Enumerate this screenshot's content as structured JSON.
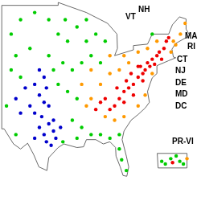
{
  "chart_data": [
    {
      "type": "scatter",
      "marker": "circle",
      "tick_labels": false,
      "grid": false,
      "xlim": [
        -107,
        -65
      ],
      "ylim": [
        22,
        49.5
      ],
      "annotations": [
        "NH",
        "VT",
        "MA",
        "RI",
        "CT",
        "NJ",
        "DE",
        "MD",
        "DC",
        "PR-VI"
      ],
      "series": [
        {
          "color": "#00cc00",
          "x": [
            -105,
            -103,
            -100,
            -97,
            -95,
            -93,
            -91,
            -89,
            -87,
            -85,
            -105,
            -104,
            -101,
            -97,
            -94,
            -92,
            -90,
            -88,
            -86,
            -95,
            -93,
            -91,
            -92,
            -90,
            -88,
            -86,
            -84,
            -82,
            -81.5,
            -80.5,
            -94,
            -91,
            -104,
            -106,
            -103,
            -82,
            -89,
            -75,
            -93.5,
            -96
          ],
          "values": [
            45,
            47,
            48,
            47,
            45,
            44,
            46,
            44,
            45,
            44,
            40,
            42,
            43,
            42,
            41,
            40,
            41,
            42,
            41,
            38,
            37,
            36,
            33,
            32,
            31,
            31,
            30.5,
            29,
            27.5,
            26,
            30,
            30.5,
            31,
            35,
            39,
            31,
            47,
            45,
            47,
            40
          ]
        },
        {
          "color": "#0000cc",
          "x": [
            -99,
            -98,
            -100,
            -97.5,
            -99,
            -98,
            -97,
            -100,
            -98.5,
            -97,
            -99,
            -96,
            -98,
            -100,
            -97.5,
            -96.5,
            -95.5,
            -101,
            -103,
            -104,
            -102,
            -96,
            -94.5
          ],
          "values": [
            40,
            39,
            38,
            37.5,
            36.5,
            35.5,
            35,
            34,
            33.5,
            32.5,
            32,
            31.5,
            31,
            30.5,
            30,
            29.5,
            30.5,
            35,
            34,
            36,
            37.5,
            33,
            32
          ]
        },
        {
          "color": "#ff9900",
          "x": [
            -88,
            -86,
            -84,
            -82,
            -80,
            -81,
            -78,
            -76,
            -74,
            -70.5,
            -69,
            -68,
            -71,
            -70,
            -85,
            -83,
            -81,
            -78,
            -76.5,
            -88,
            -84,
            -89,
            -90,
            -75
          ],
          "values": [
            36,
            38,
            39.5,
            40,
            41,
            42,
            42.5,
            43,
            44,
            44,
            45,
            46.5,
            42.5,
            43.5,
            33.5,
            33,
            33.5,
            35,
            36.5,
            40,
            42,
            35,
            38,
            39.5
          ]
        },
        {
          "color": "#ee0000",
          "x": [
            -84,
            -83,
            -82,
            -81,
            -80,
            -79,
            -78,
            -77,
            -76.5,
            -77.5,
            -76,
            -75,
            -74,
            -73.5,
            -72.5,
            -72,
            -71.5,
            -80.5,
            -79.5,
            -78,
            -75.5,
            -74.5,
            -73,
            -82.5,
            -85,
            -86,
            -87,
            -81,
            -79,
            -77
          ],
          "values": [
            34.5,
            35,
            36,
            37,
            37.5,
            38,
            39,
            39.5,
            40,
            40.5,
            41,
            41.5,
            42,
            42.5,
            43,
            44,
            44.5,
            38.5,
            39.5,
            40.5,
            40.5,
            40.8,
            41.5,
            37.5,
            36,
            35.5,
            34.5,
            35.5,
            36.5,
            38.5
          ]
        }
      ]
    },
    {
      "type": "scatter",
      "marker": "circle",
      "tick_labels": false,
      "grid": false,
      "xlim": [
        -67.4,
        -65.1
      ],
      "ylim": [
        17.8,
        18.7
      ],
      "series": [
        {
          "color": "#00cc00",
          "x": [
            -67,
            -66.5,
            -66,
            -65.8,
            -66.8,
            -66.2
          ],
          "values": [
            18.2,
            18.3,
            18.2,
            18.1,
            18.1,
            18.4
          ]
        },
        {
          "color": "#ee0000",
          "x": [
            -66.4
          ],
          "values": [
            18.15
          ]
        },
        {
          "color": "#ff9900",
          "x": [
            -65.6
          ],
          "values": [
            18.3
          ]
        }
      ]
    }
  ]
}
